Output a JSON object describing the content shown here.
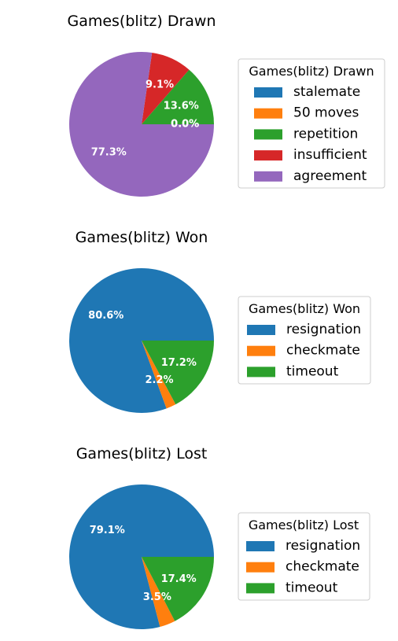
{
  "chart_data": [
    {
      "type": "pie",
      "title": "Games(blitz) Drawn",
      "legend_title": "Games(blitz) Drawn",
      "legend_placement": "right",
      "start_angle": 0,
      "direction": "counterclockwise",
      "categories": [
        "stalemate",
        "50 moves",
        "repetition",
        "insufficient",
        "agreement"
      ],
      "values": [
        0.0,
        0.0,
        13.6,
        9.1,
        77.3
      ],
      "labels": [
        "0.0%",
        "0.0%",
        "13.6%",
        "9.1%",
        "77.3%"
      ],
      "colors": [
        "#1f77b4",
        "#ff7f0e",
        "#2ca02c",
        "#d62728",
        "#9467bd"
      ]
    },
    {
      "type": "pie",
      "title": "Games(blitz) Won",
      "legend_title": "Games(blitz) Won",
      "legend_placement": "right",
      "start_angle": 0,
      "direction": "counterclockwise",
      "categories": [
        "resignation",
        "checkmate",
        "timeout"
      ],
      "values": [
        80.6,
        2.2,
        17.2
      ],
      "labels": [
        "80.6%",
        "2.2%",
        "17.2%"
      ],
      "colors": [
        "#1f77b4",
        "#ff7f0e",
        "#2ca02c"
      ]
    },
    {
      "type": "pie",
      "title": "Games(blitz) Lost",
      "legend_title": "Games(blitz) Lost",
      "legend_placement": "right",
      "start_angle": 0,
      "direction": "counterclockwise",
      "categories": [
        "resignation",
        "checkmate",
        "timeout"
      ],
      "values": [
        79.1,
        3.5,
        17.4
      ],
      "labels": [
        "79.1%",
        "3.5%",
        "17.4%"
      ],
      "colors": [
        "#1f77b4",
        "#ff7f0e",
        "#2ca02c"
      ]
    }
  ]
}
